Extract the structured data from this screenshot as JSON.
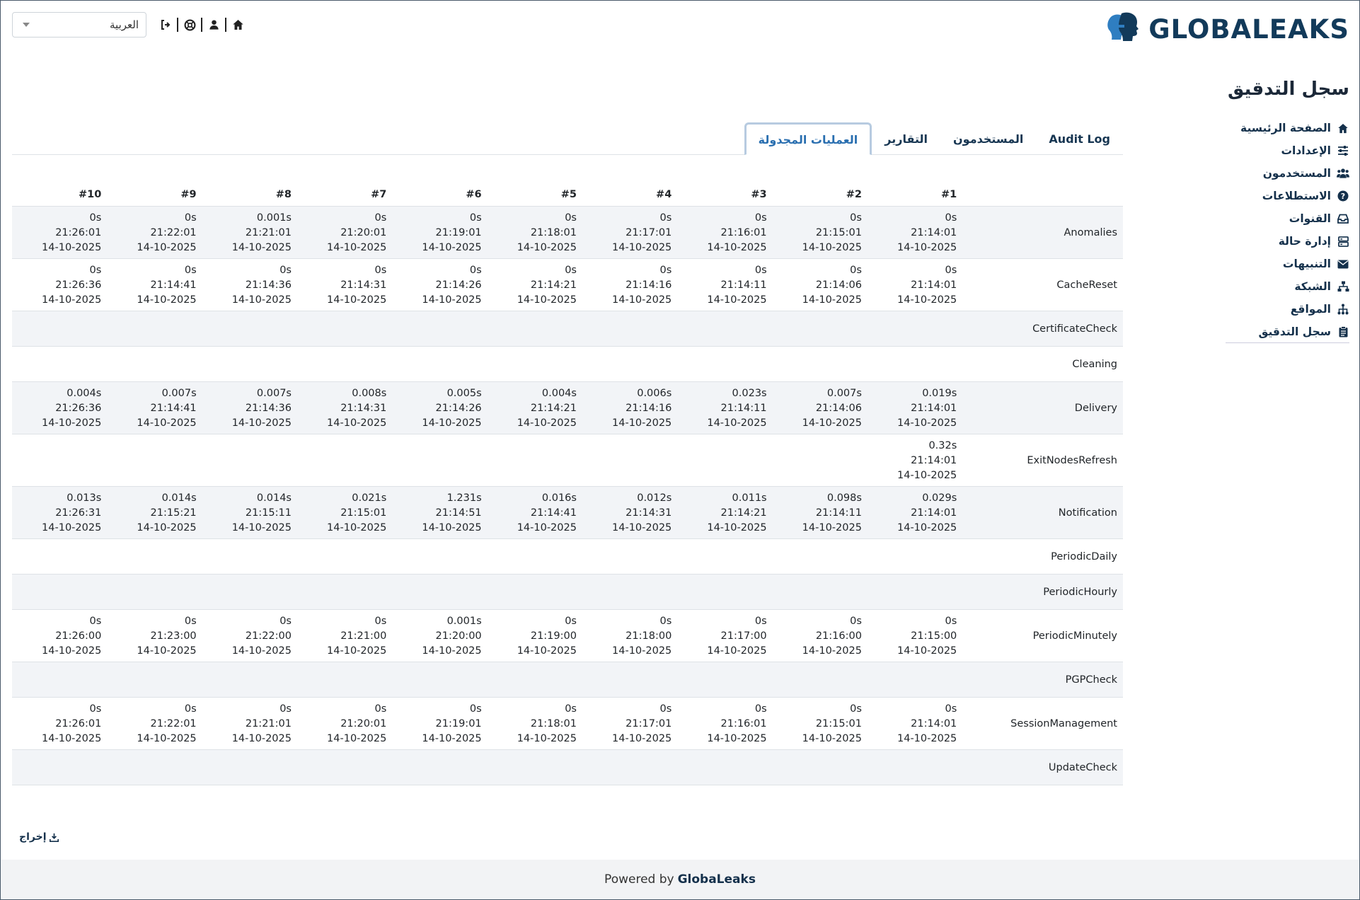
{
  "language": {
    "selected": "العربية"
  },
  "brand": {
    "name": "GLOBALEAKS"
  },
  "sidebar": {
    "title": "سجل التدقيق",
    "items": [
      {
        "label": "الصفحة الرئيسية",
        "icon": "home-icon"
      },
      {
        "label": "الإعدادات",
        "icon": "sliders-icon"
      },
      {
        "label": "المستخدمون",
        "icon": "users-icon"
      },
      {
        "label": "الاستطلاعات",
        "icon": "question-circle-icon"
      },
      {
        "label": "القنوات",
        "icon": "inbox-icon"
      },
      {
        "label": "إدارة حالة",
        "icon": "server-icon"
      },
      {
        "label": "التنبيهات",
        "icon": "envelope-icon"
      },
      {
        "label": "الشبكة",
        "icon": "network-icon"
      },
      {
        "label": "المواقع",
        "icon": "sitemap-icon"
      },
      {
        "label": "سجل التدقيق",
        "icon": "clipboard-icon"
      }
    ]
  },
  "tabs": [
    {
      "label": "Audit Log"
    },
    {
      "label": "المستخدمون"
    },
    {
      "label": "التقارير"
    },
    {
      "label": "العمليات المجدولة"
    }
  ],
  "table": {
    "headers": [
      "#1",
      "#2",
      "#3",
      "#4",
      "#5",
      "#6",
      "#7",
      "#8",
      "#9",
      "#10"
    ],
    "rows": [
      {
        "name": "Anomalies",
        "cells": [
          [
            "0s",
            "21:14:01",
            "14-10-2025"
          ],
          [
            "0s",
            "21:15:01",
            "14-10-2025"
          ],
          [
            "0s",
            "21:16:01",
            "14-10-2025"
          ],
          [
            "0s",
            "21:17:01",
            "14-10-2025"
          ],
          [
            "0s",
            "21:18:01",
            "14-10-2025"
          ],
          [
            "0s",
            "21:19:01",
            "14-10-2025"
          ],
          [
            "0s",
            "21:20:01",
            "14-10-2025"
          ],
          [
            "0.001s",
            "21:21:01",
            "14-10-2025"
          ],
          [
            "0s",
            "21:22:01",
            "14-10-2025"
          ],
          [
            "0s",
            "21:26:01",
            "14-10-2025"
          ]
        ]
      },
      {
        "name": "CacheReset",
        "cells": [
          [
            "0s",
            "21:14:01",
            "14-10-2025"
          ],
          [
            "0s",
            "21:14:06",
            "14-10-2025"
          ],
          [
            "0s",
            "21:14:11",
            "14-10-2025"
          ],
          [
            "0s",
            "21:14:16",
            "14-10-2025"
          ],
          [
            "0s",
            "21:14:21",
            "14-10-2025"
          ],
          [
            "0s",
            "21:14:26",
            "14-10-2025"
          ],
          [
            "0s",
            "21:14:31",
            "14-10-2025"
          ],
          [
            "0s",
            "21:14:36",
            "14-10-2025"
          ],
          [
            "0s",
            "21:14:41",
            "14-10-2025"
          ],
          [
            "0s",
            "21:26:36",
            "14-10-2025"
          ]
        ]
      },
      {
        "name": "CertificateCheck",
        "cells": []
      },
      {
        "name": "Cleaning",
        "cells": []
      },
      {
        "name": "Delivery",
        "cells": [
          [
            "0.019s",
            "21:14:01",
            "14-10-2025"
          ],
          [
            "0.007s",
            "21:14:06",
            "14-10-2025"
          ],
          [
            "0.023s",
            "21:14:11",
            "14-10-2025"
          ],
          [
            "0.006s",
            "21:14:16",
            "14-10-2025"
          ],
          [
            "0.004s",
            "21:14:21",
            "14-10-2025"
          ],
          [
            "0.005s",
            "21:14:26",
            "14-10-2025"
          ],
          [
            "0.008s",
            "21:14:31",
            "14-10-2025"
          ],
          [
            "0.007s",
            "21:14:36",
            "14-10-2025"
          ],
          [
            "0.007s",
            "21:14:41",
            "14-10-2025"
          ],
          [
            "0.004s",
            "21:26:36",
            "14-10-2025"
          ]
        ]
      },
      {
        "name": "ExitNodesRefresh",
        "cells": [
          [
            "0.32s",
            "21:14:01",
            "14-10-2025"
          ]
        ]
      },
      {
        "name": "Notification",
        "cells": [
          [
            "0.029s",
            "21:14:01",
            "14-10-2025"
          ],
          [
            "0.098s",
            "21:14:11",
            "14-10-2025"
          ],
          [
            "0.011s",
            "21:14:21",
            "14-10-2025"
          ],
          [
            "0.012s",
            "21:14:31",
            "14-10-2025"
          ],
          [
            "0.016s",
            "21:14:41",
            "14-10-2025"
          ],
          [
            "1.231s",
            "21:14:51",
            "14-10-2025"
          ],
          [
            "0.021s",
            "21:15:01",
            "14-10-2025"
          ],
          [
            "0.014s",
            "21:15:11",
            "14-10-2025"
          ],
          [
            "0.014s",
            "21:15:21",
            "14-10-2025"
          ],
          [
            "0.013s",
            "21:26:31",
            "14-10-2025"
          ]
        ]
      },
      {
        "name": "PeriodicDaily",
        "cells": []
      },
      {
        "name": "PeriodicHourly",
        "cells": []
      },
      {
        "name": "PeriodicMinutely",
        "cells": [
          [
            "0s",
            "21:15:00",
            "14-10-2025"
          ],
          [
            "0s",
            "21:16:00",
            "14-10-2025"
          ],
          [
            "0s",
            "21:17:00",
            "14-10-2025"
          ],
          [
            "0s",
            "21:18:00",
            "14-10-2025"
          ],
          [
            "0s",
            "21:19:00",
            "14-10-2025"
          ],
          [
            "0.001s",
            "21:20:00",
            "14-10-2025"
          ],
          [
            "0s",
            "21:21:00",
            "14-10-2025"
          ],
          [
            "0s",
            "21:22:00",
            "14-10-2025"
          ],
          [
            "0s",
            "21:23:00",
            "14-10-2025"
          ],
          [
            "0s",
            "21:26:00",
            "14-10-2025"
          ]
        ]
      },
      {
        "name": "PGPCheck",
        "cells": []
      },
      {
        "name": "SessionManagement",
        "cells": [
          [
            "0s",
            "21:14:01",
            "14-10-2025"
          ],
          [
            "0s",
            "21:15:01",
            "14-10-2025"
          ],
          [
            "0s",
            "21:16:01",
            "14-10-2025"
          ],
          [
            "0s",
            "21:17:01",
            "14-10-2025"
          ],
          [
            "0s",
            "21:18:01",
            "14-10-2025"
          ],
          [
            "0s",
            "21:19:01",
            "14-10-2025"
          ],
          [
            "0s",
            "21:20:01",
            "14-10-2025"
          ],
          [
            "0s",
            "21:21:01",
            "14-10-2025"
          ],
          [
            "0s",
            "21:22:01",
            "14-10-2025"
          ],
          [
            "0s",
            "21:26:01",
            "14-10-2025"
          ]
        ]
      },
      {
        "name": "UpdateCheck",
        "cells": []
      }
    ]
  },
  "export": {
    "label": "إخراج"
  },
  "footer": {
    "prefix": "Powered by",
    "brand": "GlobaLeaks"
  },
  "colors": {
    "primary": "#14304b",
    "active_tab": "#2a6fb0",
    "stripe": "#f2f4f7"
  }
}
